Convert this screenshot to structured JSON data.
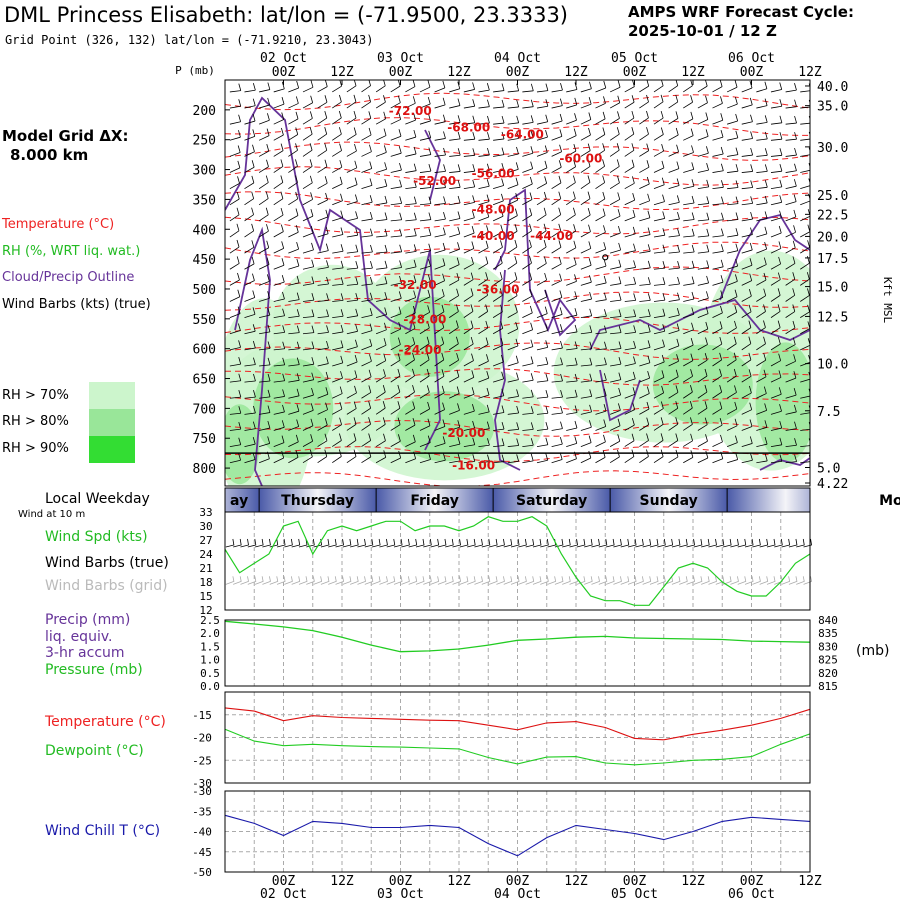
{
  "header": {
    "title": "DML Princess Elisabeth:  lat/lon = (-71.9500, 23.3333)",
    "grid_point": "Grid Point (326, 132) lat/lon = (-71.9210, 23.3043)",
    "cycle_line1": "AMPS WRF Forecast Cycle:",
    "cycle_line2": "2025-10-01 / 12  Z"
  },
  "left_panel": {
    "grid_dx_label": "Model Grid ΔX:",
    "grid_dx_value": "8.000 km",
    "legend": {
      "temperature": "Temperature (°C)",
      "rh": "RH (%, WRT liq. wat.)",
      "cloud": "Cloud/Precip Outline",
      "wind": "Wind Barbs (kts) (true)"
    },
    "rh_key": [
      {
        "label": "RH > 70%",
        "color": "#ccf5cc"
      },
      {
        "label": "RH > 80%",
        "color": "#99e699"
      },
      {
        "label": "RH > 90%",
        "color": "#33dd33"
      }
    ]
  },
  "chart_data": [
    {
      "type": "heatmap",
      "name": "time-height cross section",
      "y_label_left": "P (mb)",
      "y_label_right": "Kft MSL",
      "pressure_ticks": [
        200,
        250,
        300,
        350,
        400,
        450,
        500,
        550,
        600,
        650,
        700,
        750,
        800
      ],
      "height_ticks": [
        "40.0",
        "35.0",
        "30.0",
        "25.0",
        "22.5",
        "20.0",
        "17.5",
        "15.0",
        "12.5",
        "10.0",
        "7.5",
        "5.0",
        "4.22"
      ],
      "height_tick_pressure": [
        160,
        193,
        262,
        343,
        375,
        412,
        448,
        496,
        546,
        625,
        704,
        799,
        825
      ],
      "time_ticks_top": [
        "00Z",
        "12Z",
        "00Z",
        "12Z",
        "00Z",
        "12Z",
        "00Z",
        "12Z",
        "00Z",
        "12Z"
      ],
      "time_tick_hours": [
        12,
        24,
        36,
        48,
        60,
        72,
        84,
        96,
        108,
        120
      ],
      "date_labels_top": [
        "02 Oct",
        "03 Oct",
        "04 Oct",
        "05 Oct",
        "06 Oct"
      ],
      "date_label_hours": [
        12,
        36,
        60,
        84,
        108
      ],
      "x_range_hours": [
        0,
        120
      ],
      "p_range": [
        150,
        830
      ],
      "temperature_contours": [
        {
          "label": "-72.00",
          "hour": 38,
          "p": 209
        },
        {
          "label": "-68.00",
          "hour": 50,
          "p": 236
        },
        {
          "label": "-64.00",
          "hour": 61,
          "p": 248
        },
        {
          "label": "-60.00",
          "hour": 73,
          "p": 288
        },
        {
          "label": "-56.00",
          "hour": 55,
          "p": 313
        },
        {
          "label": "-52.00",
          "hour": 43,
          "p": 326
        },
        {
          "label": "-48.00",
          "hour": 55,
          "p": 374
        },
        {
          "label": "-44.00",
          "hour": 67,
          "p": 418
        },
        {
          "label": "-40.00",
          "hour": 55,
          "p": 418
        },
        {
          "label": "-36.00",
          "hour": 56,
          "p": 508
        },
        {
          "label": "-32.00",
          "hour": 39,
          "p": 500
        },
        {
          "label": "-28.00",
          "hour": 41,
          "p": 558
        },
        {
          "label": "-24.00",
          "hour": 40,
          "p": 609
        },
        {
          "label": "-20.00",
          "hour": 49,
          "p": 748
        },
        {
          "label": "-16.00",
          "hour": 51,
          "p": 802
        }
      ]
    },
    {
      "type": "line",
      "name": "wind speed",
      "header_day_label": "Local Weekday",
      "header_sub_label": "Wind at 10 m",
      "weekdays": [
        {
          "label": "ay",
          "start_hour": 0,
          "end_hour": 7
        },
        {
          "label": "Thursday",
          "start_hour": 7,
          "end_hour": 31
        },
        {
          "label": "Friday",
          "start_hour": 31,
          "end_hour": 55
        },
        {
          "label": "Saturday",
          "start_hour": 55,
          "end_hour": 79
        },
        {
          "label": "Sunday",
          "start_hour": 79,
          "end_hour": 103
        },
        {
          "label": "Mond",
          "start_hour": 103,
          "end_hour": 120
        }
      ],
      "label_speed": "Wind Spd (kts)",
      "label_barbs_true": "Wind Barbs (true)",
      "label_barbs_grid": "Wind Barbs (grid)",
      "ylim": [
        12,
        33
      ],
      "yticks": [
        12,
        15,
        18,
        21,
        24,
        27,
        30,
        33
      ],
      "x": [
        0,
        3,
        6,
        9,
        12,
        15,
        18,
        21,
        24,
        27,
        30,
        33,
        36,
        39,
        42,
        45,
        48,
        51,
        54,
        57,
        60,
        63,
        66,
        69,
        72,
        75,
        78,
        81,
        84,
        87,
        90,
        93,
        96,
        99,
        102,
        105,
        108,
        111,
        114,
        117,
        120
      ],
      "values": [
        25,
        20,
        22,
        24,
        30,
        31,
        24,
        29,
        30,
        29,
        30,
        31,
        31,
        29,
        30,
        30,
        29,
        30,
        32,
        31,
        31,
        32,
        30,
        24,
        19,
        15,
        14,
        14,
        13,
        13,
        17,
        21,
        22,
        21,
        18,
        16,
        15,
        15,
        18,
        22,
        24
      ]
    },
    {
      "type": "line",
      "name": "precip and pressure",
      "label_precip": "Precip (mm)",
      "label_precip_2": "liq. equiv.",
      "label_precip_3": "3-hr accum",
      "label_pressure": "Pressure (mb)",
      "right_unit": "(mb)",
      "left_ylim": [
        0,
        2.5
      ],
      "left_yticks": [
        "0.0",
        "0.5",
        "1.0",
        "1.5",
        "2.0",
        "2.5"
      ],
      "right_ylim": [
        815,
        840
      ],
      "right_yticks": [
        "815",
        "820",
        "825",
        "830",
        "835",
        "840"
      ],
      "x": [
        0,
        6,
        12,
        18,
        24,
        30,
        36,
        42,
        48,
        54,
        60,
        66,
        72,
        78,
        84,
        90,
        96,
        102,
        108,
        114,
        120
      ],
      "precip": [
        0,
        0,
        0,
        0,
        0,
        0,
        0,
        0,
        0,
        0,
        0,
        0,
        0,
        0,
        0,
        0,
        0,
        0,
        0,
        0,
        0
      ],
      "pressure": [
        839.5,
        838.5,
        837.4,
        836,
        833.5,
        830.5,
        828,
        828.3,
        829,
        830.5,
        832.3,
        832.8,
        833.5,
        833.8,
        833.2,
        833,
        832.8,
        832.6,
        832,
        831.8,
        831.6
      ]
    },
    {
      "type": "line",
      "name": "temperature and dewpoint",
      "label_temp": "Temperature (°C)",
      "label_dew": "Dewpoint (°C)",
      "ylim": [
        -30,
        -10
      ],
      "yticks": [
        -30,
        -25,
        -20,
        -15
      ],
      "x": [
        0,
        6,
        12,
        18,
        24,
        30,
        36,
        42,
        48,
        54,
        60,
        66,
        72,
        78,
        84,
        90,
        96,
        102,
        108,
        114,
        120
      ],
      "temperature": [
        -13.5,
        -14.2,
        -16.3,
        -15.2,
        -15.6,
        -15.8,
        -16,
        -16.2,
        -16.3,
        -17.3,
        -18.3,
        -16.8,
        -16.5,
        -17.8,
        -20.2,
        -20.5,
        -19.3,
        -18.4,
        -17.3,
        -15.8,
        -13.8
      ],
      "dewpoint": [
        -18.2,
        -20.8,
        -21.8,
        -21.5,
        -21.8,
        -22,
        -22.1,
        -22.3,
        -22.5,
        -24.4,
        -25.8,
        -24.3,
        -24.2,
        -25.6,
        -26,
        -25.6,
        -25,
        -24.8,
        -24.2,
        -21.5,
        -19.2
      ]
    },
    {
      "type": "line",
      "name": "wind chill",
      "label_chill": "Wind Chill T (°C)",
      "ylim": [
        -50,
        -30
      ],
      "yticks": [
        -50,
        -45,
        -40,
        -35,
        -30
      ],
      "x": [
        0,
        6,
        12,
        18,
        24,
        30,
        36,
        42,
        48,
        54,
        60,
        66,
        72,
        78,
        84,
        90,
        96,
        102,
        108,
        114,
        120
      ],
      "chill": [
        -36,
        -38,
        -41,
        -37.5,
        -38,
        -39,
        -39,
        -38.5,
        -39,
        -43,
        -46,
        -41.5,
        -38.5,
        -39.5,
        -40.5,
        -42,
        -40,
        -37.5,
        -36.5,
        -37,
        -37.5
      ],
      "time_ticks_bottom": [
        "00Z",
        "12Z",
        "00Z",
        "12Z",
        "00Z",
        "12Z",
        "00Z",
        "12Z",
        "00Z",
        "12Z"
      ],
      "date_labels_bottom": [
        "02 Oct",
        "03 Oct",
        "04 Oct",
        "05 Oct",
        "06 Oct"
      ]
    }
  ],
  "colors": {
    "temperature": "#ee2222",
    "rh_text": "#22bb22",
    "cloud": "#663399",
    "wind_line": "#22cc22",
    "dewpoint": "#22cc22",
    "chill": "#1a1aaa",
    "grid": "#aaaaaa"
  }
}
